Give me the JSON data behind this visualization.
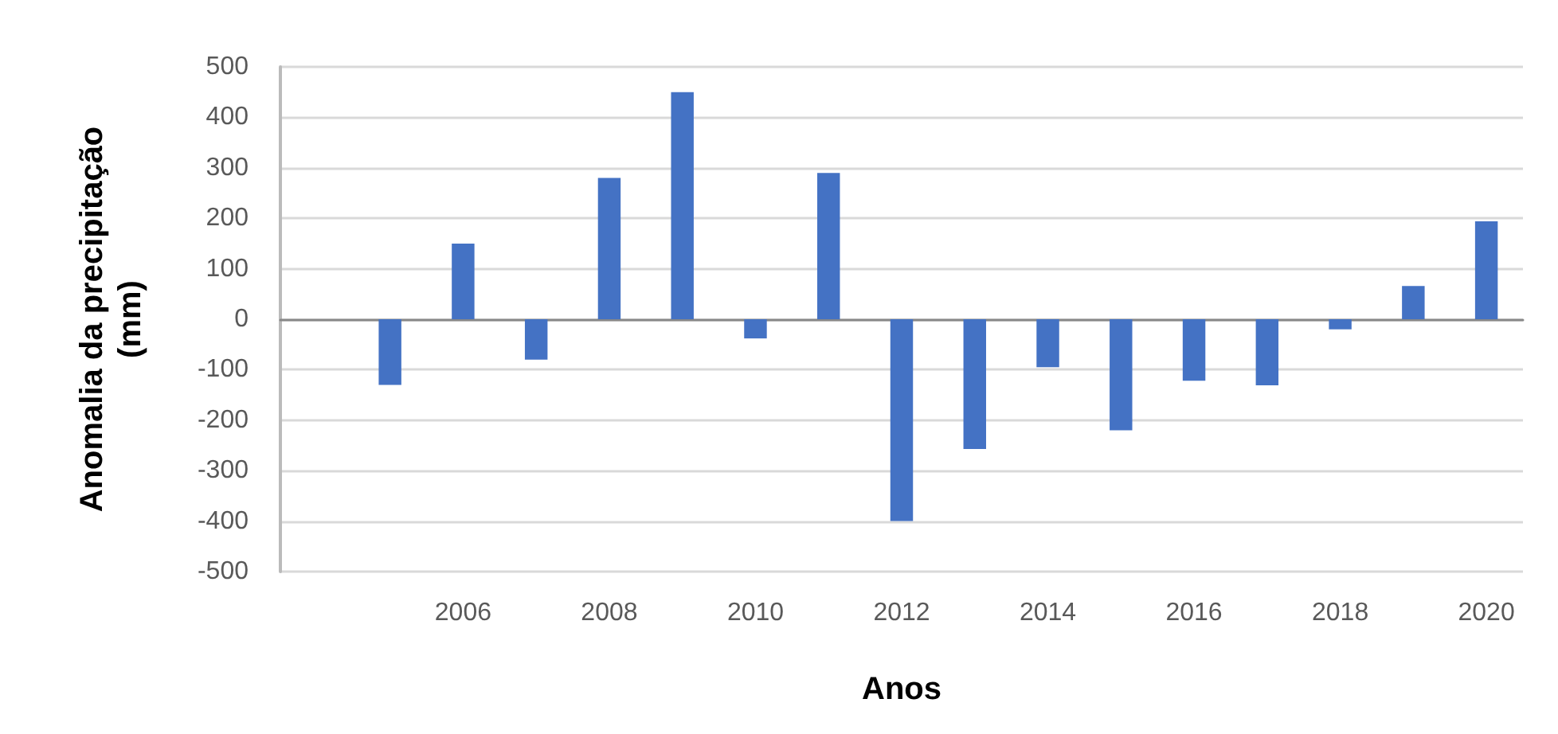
{
  "chart_data": {
    "type": "bar",
    "xlabel": "Anos",
    "ylabel": "Anomalia da precipitação (mm)",
    "categories": [
      null,
      null,
      "2006",
      null,
      "2008",
      null,
      "2010",
      null,
      "2012",
      null,
      "2014",
      null,
      "2016",
      null,
      "2018",
      null,
      "2020"
    ],
    "values": [
      null,
      -130,
      150,
      -80,
      280,
      450,
      -38,
      290,
      -400,
      -257,
      -95,
      -220,
      -122,
      -131,
      -20,
      66,
      194
    ],
    "color": "#4472c4",
    "ylim": [
      -500,
      500
    ],
    "yticks": [
      -500,
      -400,
      -300,
      -200,
      -100,
      0,
      100,
      200,
      300,
      400,
      500
    ],
    "grid": "y"
  }
}
